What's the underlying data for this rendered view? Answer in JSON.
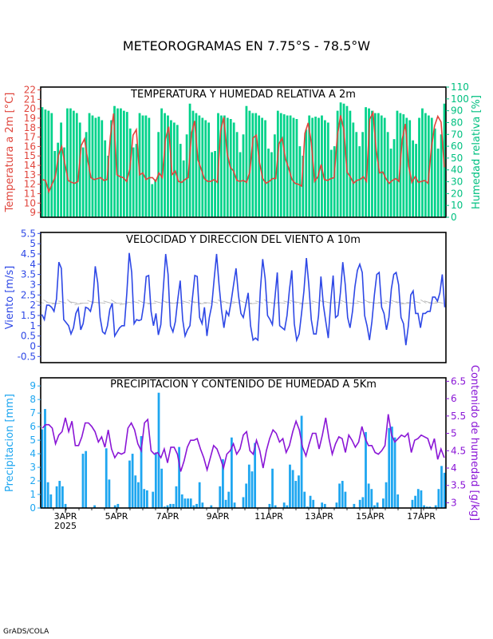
{
  "title": "METEOROGRAMAS EN 7.75°S - 78.5°W",
  "credit": "GrADS/COLA",
  "colors": {
    "temperature": "#e0453c",
    "humidity_bar": "#00d28a",
    "wind": "#2e48e6",
    "wind_barb": "#b4b4b4",
    "precip_bar": "#1ea6f0",
    "moisture": "#8a16d6",
    "axis_temp": "#e0453c",
    "axis_hum": "#00c080",
    "axis_wind": "#2e48e6",
    "axis_precip": "#1ea6f0",
    "axis_moist": "#8a16d6"
  },
  "x_axis": {
    "ticks": [
      "3APR",
      "5APR",
      "7APR",
      "9APR",
      "11APR",
      "13APR",
      "15APR",
      "17APR"
    ],
    "year": "2025"
  },
  "chart_data": [
    {
      "type": "bar+line",
      "title": "TEMPERATURA Y HUMEDAD RELATIVA A 2m",
      "ylabel_left": "Temperatura a 2m [°C]",
      "ylabel_right": "Humedad relativa [%]",
      "ylim_left": [
        8.5,
        22.3
      ],
      "ylim_right": [
        0,
        110
      ],
      "yticks_left": [
        9,
        10,
        11,
        12,
        13,
        14,
        15,
        16,
        17,
        18,
        19,
        20,
        21,
        22
      ],
      "yticks_right": [
        0,
        10,
        20,
        30,
        40,
        50,
        60,
        70,
        80,
        90,
        100,
        110
      ],
      "temperature": [
        12.5,
        12.4,
        11.2,
        12.0,
        12.8,
        15.1,
        16.0,
        14.1,
        12.4,
        12.2,
        12.1,
        12.3,
        16.1,
        16.8,
        14.6,
        12.7,
        12.5,
        12.6,
        12.7,
        12.4,
        12.5,
        17.1,
        19.5,
        13.0,
        12.8,
        12.7,
        12.3,
        13.6,
        17.2,
        17.8,
        13.0,
        13.2,
        12.5,
        12.7,
        12.7,
        12.3,
        13.2,
        12.7,
        16.8,
        18.1,
        13.0,
        13.4,
        12.3,
        12.2,
        12.5,
        12.7,
        17.4,
        18.7,
        14.6,
        13.6,
        12.6,
        12.3,
        12.3,
        12.5,
        12.2,
        17.7,
        19.1,
        15.3,
        13.8,
        13.4,
        12.4,
        12.3,
        12.4,
        12.2,
        13.3,
        16.9,
        17.2,
        14.3,
        12.6,
        12.1,
        12.3,
        12.6,
        12.6,
        16.3,
        16.9,
        14.7,
        13.7,
        12.5,
        12.1,
        12.0,
        11.8,
        17.4,
        18.5,
        16.4,
        12.3,
        12.8,
        14.1,
        12.5,
        12.4,
        12.6,
        12.7,
        17.1,
        19.3,
        17.8,
        13.3,
        12.8,
        12.1,
        12.4,
        12.5,
        12.8,
        12.3,
        18.9,
        19.6,
        15.6,
        13.2,
        13.3,
        12.6,
        12.1,
        12.4,
        12.6,
        12.3,
        16.7,
        18.4,
        13.9,
        12.2,
        12.8,
        12.2,
        12.3,
        12.4,
        12.1,
        15.8,
        18.2,
        19.2,
        18.6,
        13.8
      ],
      "humidity": [
        93,
        91,
        90,
        88,
        56,
        63,
        80,
        59,
        92,
        92,
        90,
        88,
        80,
        59,
        72,
        88,
        86,
        84,
        85,
        82,
        65,
        52,
        82,
        94,
        92,
        92,
        90,
        89,
        75,
        59,
        62,
        88,
        86,
        86,
        84,
        28,
        32,
        72,
        92,
        88,
        86,
        82,
        80,
        78,
        62,
        48,
        70,
        96,
        90,
        88,
        86,
        84,
        82,
        80,
        55,
        56,
        88,
        86,
        86,
        84,
        83,
        80,
        72,
        55,
        70,
        94,
        90,
        88,
        88,
        86,
        84,
        82,
        58,
        55,
        70,
        90,
        88,
        87,
        86,
        86,
        84,
        83,
        60,
        52,
        74,
        86,
        84,
        85,
        84,
        86,
        82,
        80,
        57,
        60,
        90,
        97,
        96,
        94,
        90,
        80,
        72,
        60,
        72,
        93,
        92,
        90,
        88,
        88,
        86,
        84,
        72,
        58,
        66,
        90,
        88,
        87,
        84,
        82,
        65,
        62,
        84,
        92,
        88,
        86,
        84,
        75,
        58,
        70,
        96
      ]
    },
    {
      "type": "line",
      "title": "VELOCIDAD Y DIRECCION DEL VIENTO A 10m",
      "ylabel": "Viento [m/s]",
      "ylim": [
        -0.8,
        5.55
      ],
      "yticks": [
        -0.5,
        0,
        0.5,
        1,
        1.5,
        2,
        2.5,
        3,
        3.5,
        4,
        4.5,
        5,
        5.5
      ],
      "wind_speed": [
        1.55,
        1.3,
        2.0,
        2.0,
        1.9,
        1.7,
        2.3,
        4.1,
        3.8,
        1.3,
        1.15,
        1.0,
        0.6,
        0.9,
        1.6,
        1.85,
        0.8,
        1.1,
        1.9,
        1.85,
        1.7,
        2.2,
        3.9,
        3.1,
        1.4,
        0.7,
        0.6,
        1.0,
        1.8,
        2.1,
        0.5,
        0.7,
        0.9,
        1.0,
        1.0,
        2.6,
        4.55,
        3.6,
        1.1,
        1.3,
        1.25,
        1.3,
        2.05,
        3.4,
        3.45,
        1.7,
        1.0,
        1.6,
        0.55,
        1.05,
        2.75,
        4.5,
        3.5,
        1.0,
        0.7,
        1.2,
        2.3,
        3.2,
        1.3,
        0.5,
        0.8,
        1.0,
        2.3,
        3.45,
        3.4,
        1.4,
        1.1,
        1.9,
        0.5,
        1.4,
        2.0,
        3.3,
        4.5,
        3.0,
        1.8,
        0.9,
        1.7,
        1.5,
        2.2,
        3.0,
        3.8,
        2.5,
        1.6,
        1.4,
        2.0,
        2.6,
        1.0,
        0.3,
        0.4,
        0.3,
        2.7,
        4.25,
        3.3,
        1.5,
        1.3,
        1.05,
        2.3,
        3.6,
        1.0,
        0.9,
        0.8,
        1.5,
        2.75,
        3.7,
        1.1,
        0.3,
        0.6,
        1.6,
        2.7,
        4.3,
        3.0,
        1.3,
        0.6,
        0.6,
        1.5,
        3.4,
        2.0,
        1.2,
        0.4,
        2.1,
        3.45,
        1.4,
        1.5,
        2.6,
        4.1,
        3.0,
        1.4,
        0.9,
        1.7,
        2.9,
        3.7,
        4.0,
        3.6,
        1.5,
        1.0,
        0.3,
        1.2,
        2.5,
        3.5,
        3.6,
        1.9,
        1.6,
        0.8,
        1.4,
        2.8,
        3.5,
        3.6,
        3.0,
        1.4,
        1.1,
        0.05,
        1.0,
        2.5,
        2.7,
        1.6,
        1.6,
        0.9,
        1.6,
        1.6,
        1.7,
        1.7,
        2.4,
        2.4,
        2.2,
        2.6,
        3.5,
        1.9
      ],
      "wind_direction_deg": [
        300,
        320,
        280,
        260,
        300,
        330,
        290,
        250,
        270,
        310,
        290,
        280,
        300,
        320,
        270,
        250,
        290,
        300,
        310,
        280,
        260,
        300,
        320,
        290,
        270,
        280,
        300,
        310,
        290,
        260,
        280,
        300,
        320,
        300,
        270,
        290,
        310,
        280,
        260,
        300,
        330,
        290,
        270,
        280,
        300,
        310,
        290,
        260,
        270,
        300,
        320,
        300,
        280,
        290,
        310,
        280,
        270,
        300,
        320,
        290,
        270,
        280,
        300,
        310,
        290,
        260,
        280,
        300,
        320,
        300,
        270,
        290
      ]
    },
    {
      "type": "bar+line",
      "title": "PRECIPITACION Y CONTENIDO DE HUMEDAD A 5Km",
      "ylabel_left": "Precipitacion [mm]",
      "ylabel_right": "Contenido de humedad [g/kg]",
      "ylim_left": [
        0,
        9.6
      ],
      "ylim_right": [
        2.85,
        6.6
      ],
      "yticks_left": [
        0,
        1,
        2,
        3,
        4,
        5,
        6,
        7,
        8,
        9
      ],
      "yticks_right": [
        3,
        3.5,
        4,
        4.5,
        5,
        5.5,
        6,
        6.5
      ],
      "precipitation": [
        5.8,
        7.3,
        1.9,
        1.0,
        0.0,
        1.6,
        2.0,
        1.6,
        0.3,
        0.0,
        0.0,
        0.0,
        0.0,
        0.0,
        4.0,
        4.2,
        0.0,
        0.0,
        0.2,
        0.0,
        0.0,
        0.0,
        4.4,
        2.1,
        0.0,
        0.2,
        0.3,
        0.0,
        0.0,
        0.0,
        3.5,
        4.0,
        2.4,
        1.9,
        5.3,
        1.4,
        1.3,
        0.0,
        1.2,
        4.1,
        8.5,
        2.9,
        0.1,
        0.2,
        0.3,
        0.3,
        1.6,
        4.5,
        1.0,
        0.7,
        0.7,
        0.7,
        0.2,
        0.3,
        1.9,
        0.4,
        0.0,
        0.0,
        0.2,
        0.0,
        0.0,
        1.6,
        3.6,
        0.6,
        1.2,
        5.2,
        0.4,
        0.0,
        0.0,
        0.8,
        1.8,
        3.2,
        2.7,
        4.8,
        0.0,
        0.0,
        0.0,
        0.0,
        0.3,
        2.9,
        0.2,
        0.0,
        0.0,
        0.4,
        0.2,
        3.2,
        2.8,
        2.0,
        2.4,
        6.8,
        1.2,
        0.1,
        0.9,
        0.6,
        0.0,
        0.0,
        0.4,
        0.3,
        0.0,
        0.0,
        0.0,
        0.4,
        1.8,
        2.0,
        1.2,
        0.0,
        0.0,
        0.3,
        0.0,
        0.6,
        0.8,
        5.6,
        1.8,
        1.4,
        0.2,
        0.4,
        0.0,
        0.7,
        1.9,
        5.9,
        6.0,
        5.2,
        1.0,
        0.0,
        0.0,
        0.0,
        0.0,
        0.6,
        0.9,
        1.4,
        1.3,
        0.2,
        0.1,
        0.1,
        0.0,
        0.2,
        1.4,
        3.1,
        2.6
      ],
      "moisture": [
        5.15,
        5.25,
        5.25,
        5.15,
        4.7,
        4.95,
        5.05,
        5.45,
        5.05,
        5.35,
        4.65,
        4.65,
        4.9,
        5.3,
        5.3,
        5.2,
        5.05,
        4.75,
        4.9,
        4.6,
        5.1,
        4.55,
        4.3,
        4.45,
        4.4,
        4.45,
        5.15,
        5.3,
        5.1,
        4.7,
        4.5,
        5.3,
        5.4,
        4.5,
        4.4,
        4.45,
        4.3,
        4.55,
        4.15,
        4.6,
        4.6,
        4.4,
        3.9,
        4.2,
        4.6,
        4.8,
        4.8,
        4.85,
        4.55,
        4.3,
        3.95,
        4.3,
        4.65,
        4.55,
        4.3,
        4.0,
        4.4,
        4.5,
        4.7,
        4.4,
        4.55,
        4.95,
        5.05,
        4.5,
        4.4,
        4.8,
        4.5,
        4.0,
        4.5,
        4.85,
        5.1,
        5.0,
        4.75,
        4.85,
        4.45,
        4.65,
        5.05,
        5.35,
        5.1,
        4.6,
        4.35,
        4.7,
        5.0,
        5.0,
        4.55,
        4.95,
        5.45,
        4.85,
        4.4,
        4.7,
        4.9,
        4.85,
        4.45,
        4.95,
        4.8,
        4.6,
        4.75,
        5.2,
        4.85,
        4.65,
        4.65,
        4.45,
        4.4,
        4.5,
        4.65,
        5.55,
        4.95,
        4.75,
        4.85,
        4.95,
        4.9,
        5.0,
        4.45,
        4.8,
        4.85,
        4.95,
        4.9,
        4.85,
        4.55,
        4.85,
        4.25,
        4.55,
        4.3
      ]
    }
  ]
}
